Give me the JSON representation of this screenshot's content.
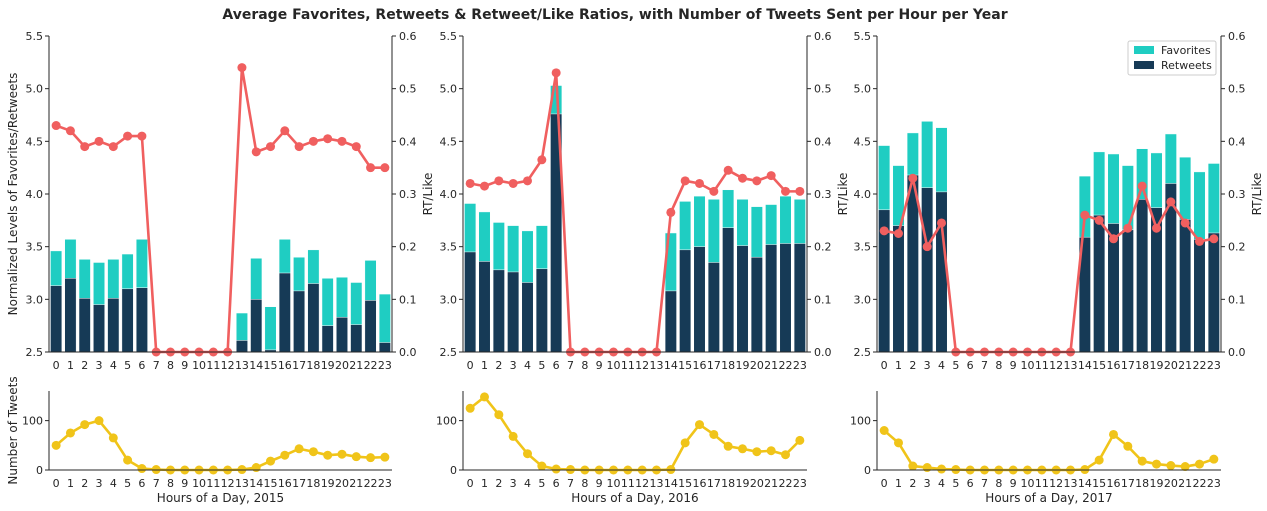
{
  "title": "Average Favorites, Retweets & Retweet/Like Ratios, with Number of Tweets Sent per Hour per Year",
  "colors": {
    "favorites": "#1fcdc2",
    "retweets": "#163a56",
    "ratio": "#f05f5f",
    "count": "#f0c419",
    "axis": "#262626"
  },
  "legend": {
    "position": "top-right",
    "entries": [
      "Favorites",
      "Retweets"
    ]
  },
  "chart_data": [
    {
      "type": "bar",
      "panel": "2015-top",
      "categories": [
        "0",
        "1",
        "2",
        "3",
        "4",
        "5",
        "6",
        "7",
        "8",
        "9",
        "10",
        "11",
        "12",
        "13",
        "14",
        "15",
        "16",
        "17",
        "18",
        "19",
        "20",
        "21",
        "22",
        "23"
      ],
      "ylabel": "Normalized Levels of Favorites/Retweets",
      "y2label": "RT/Like",
      "ylim": [
        2.5,
        5.5
      ],
      "yticks": [
        "2.5",
        "3.0",
        "3.5",
        "4.0",
        "4.5",
        "5.0",
        "5.5"
      ],
      "y2lim": [
        0.0,
        0.6
      ],
      "y2ticks": [
        "0.0",
        "0.1",
        "0.2",
        "0.3",
        "0.4",
        "0.5",
        "0.6"
      ],
      "series": [
        {
          "name": "Favorites",
          "kind": "bar",
          "values": [
            3.46,
            3.57,
            3.38,
            3.35,
            3.38,
            3.43,
            3.57,
            null,
            null,
            null,
            null,
            null,
            null,
            2.87,
            3.39,
            2.93,
            3.57,
            3.4,
            3.47,
            3.2,
            3.21,
            3.16,
            3.37,
            3.05
          ]
        },
        {
          "name": "Retweets",
          "kind": "bar",
          "values": [
            3.13,
            3.2,
            3.01,
            2.95,
            3.01,
            3.1,
            3.11,
            null,
            null,
            null,
            null,
            null,
            null,
            2.61,
            3.0,
            2.52,
            3.25,
            3.08,
            3.15,
            2.75,
            2.83,
            2.76,
            2.99,
            2.59
          ]
        },
        {
          "kind": "line",
          "axis": "right",
          "values": [
            0.43,
            0.42,
            0.39,
            0.4,
            0.39,
            0.41,
            0.41,
            0.0,
            0.0,
            0.0,
            0.0,
            0.0,
            0.0,
            0.54,
            0.38,
            0.39,
            0.42,
            0.39,
            0.4,
            0.405,
            0.4,
            0.39,
            0.35,
            0.35
          ]
        }
      ]
    },
    {
      "type": "bar",
      "panel": "2016-top",
      "categories": [
        "0",
        "1",
        "2",
        "3",
        "4",
        "5",
        "6",
        "7",
        "8",
        "9",
        "10",
        "11",
        "12",
        "13",
        "14",
        "15",
        "16",
        "17",
        "18",
        "19",
        "20",
        "21",
        "22",
        "23"
      ],
      "ylabel": "",
      "y2label": "RT/Like",
      "ylim": [
        2.5,
        5.5
      ],
      "yticks": [
        "2.5",
        "3.0",
        "3.5",
        "4.0",
        "4.5",
        "5.0",
        "5.5"
      ],
      "y2lim": [
        0.0,
        0.6
      ],
      "y2ticks": [
        "0.0",
        "0.1",
        "0.2",
        "0.3",
        "0.4",
        "0.5",
        "0.6"
      ],
      "series": [
        {
          "name": "Favorites",
          "kind": "bar",
          "values": [
            3.91,
            3.83,
            3.73,
            3.7,
            3.65,
            3.7,
            5.03,
            null,
            null,
            null,
            null,
            null,
            null,
            null,
            3.63,
            3.93,
            3.98,
            3.95,
            4.04,
            3.95,
            3.88,
            3.9,
            3.98,
            3.95
          ]
        },
        {
          "name": "Retweets",
          "kind": "bar",
          "values": [
            3.45,
            3.36,
            3.28,
            3.26,
            3.16,
            3.29,
            4.76,
            null,
            null,
            null,
            null,
            null,
            null,
            null,
            3.08,
            3.47,
            3.5,
            3.35,
            3.68,
            3.51,
            3.4,
            3.52,
            3.53,
            3.53
          ]
        },
        {
          "kind": "line",
          "axis": "right",
          "values": [
            0.32,
            0.315,
            0.325,
            0.32,
            0.325,
            0.365,
            0.53,
            0.0,
            0.0,
            0.0,
            0.0,
            0.0,
            0.0,
            0.0,
            0.265,
            0.325,
            0.32,
            0.305,
            0.345,
            0.33,
            0.325,
            0.335,
            0.305,
            0.305
          ]
        }
      ]
    },
    {
      "type": "bar",
      "panel": "2017-top",
      "categories": [
        "0",
        "1",
        "2",
        "3",
        "4",
        "5",
        "6",
        "7",
        "8",
        "9",
        "10",
        "11",
        "12",
        "13",
        "14",
        "15",
        "16",
        "17",
        "18",
        "19",
        "20",
        "21",
        "22",
        "23"
      ],
      "ylabel": "",
      "y2label": "RT/Like",
      "ylim": [
        2.5,
        5.5
      ],
      "yticks": [
        "2.5",
        "3.0",
        "3.5",
        "4.0",
        "4.5",
        "5.0",
        "5.5"
      ],
      "y2lim": [
        0.0,
        0.6
      ],
      "y2ticks": [
        "0.0",
        "0.1",
        "0.2",
        "0.3",
        "0.4",
        "0.5",
        "0.6"
      ],
      "series": [
        {
          "name": "Favorites",
          "kind": "bar",
          "values": [
            4.46,
            4.27,
            4.58,
            4.69,
            4.63,
            null,
            null,
            null,
            null,
            null,
            null,
            null,
            null,
            null,
            4.17,
            4.4,
            4.38,
            4.27,
            4.43,
            4.39,
            4.57,
            4.35,
            4.21,
            4.29
          ]
        },
        {
          "name": "Retweets",
          "kind": "bar",
          "values": [
            3.85,
            3.7,
            4.18,
            4.06,
            4.02,
            null,
            null,
            null,
            null,
            null,
            null,
            null,
            null,
            null,
            3.59,
            3.8,
            3.72,
            3.66,
            3.95,
            3.87,
            4.1,
            3.76,
            3.57,
            3.63
          ]
        },
        {
          "kind": "line",
          "axis": "right",
          "values": [
            0.23,
            0.225,
            0.33,
            0.2,
            0.245,
            0.0,
            0.0,
            0.0,
            0.0,
            0.0,
            0.0,
            0.0,
            0.0,
            0.0,
            0.26,
            0.25,
            0.215,
            0.235,
            0.315,
            0.235,
            0.285,
            0.245,
            0.21,
            0.215
          ]
        }
      ]
    },
    {
      "type": "line",
      "panel": "2015-bottom",
      "categories": [
        "0",
        "1",
        "2",
        "3",
        "4",
        "5",
        "6",
        "7",
        "8",
        "9",
        "10",
        "11",
        "12",
        "13",
        "14",
        "15",
        "16",
        "17",
        "18",
        "19",
        "20",
        "21",
        "22",
        "23"
      ],
      "xlabel": "Hours of a Day, 2015",
      "ylabel": "Number of Tweets",
      "ylim": [
        0,
        160
      ],
      "yticks": [
        "0",
        "100"
      ],
      "values": [
        50,
        75,
        92,
        100,
        65,
        20,
        3,
        1,
        0,
        0,
        0,
        0,
        0,
        1,
        5,
        18,
        30,
        43,
        37,
        30,
        32,
        27,
        25,
        26
      ]
    },
    {
      "type": "line",
      "panel": "2016-bottom",
      "categories": [
        "0",
        "1",
        "2",
        "3",
        "4",
        "5",
        "6",
        "7",
        "8",
        "9",
        "10",
        "11",
        "12",
        "13",
        "14",
        "15",
        "16",
        "17",
        "18",
        "19",
        "20",
        "21",
        "22",
        "23"
      ],
      "xlabel": "Hours of a Day, 2016",
      "ylabel": "",
      "ylim": [
        0,
        160
      ],
      "yticks": [
        "0",
        "100"
      ],
      "values": [
        125,
        148,
        112,
        68,
        33,
        8,
        2,
        1,
        0,
        0,
        0,
        0,
        0,
        0,
        1,
        55,
        92,
        72,
        48,
        43,
        37,
        39,
        31,
        60
      ]
    },
    {
      "type": "line",
      "panel": "2017-bottom",
      "categories": [
        "0",
        "1",
        "2",
        "3",
        "4",
        "5",
        "6",
        "7",
        "8",
        "9",
        "10",
        "11",
        "12",
        "13",
        "14",
        "15",
        "16",
        "17",
        "18",
        "19",
        "20",
        "21",
        "22",
        "23"
      ],
      "xlabel": "Hours of a Day, 2017",
      "ylabel": "",
      "ylim": [
        0,
        160
      ],
      "yticks": [
        "0",
        "100"
      ],
      "values": [
        80,
        55,
        8,
        5,
        2,
        1,
        0,
        0,
        0,
        0,
        0,
        0,
        0,
        0,
        1,
        20,
        72,
        48,
        18,
        12,
        9,
        7,
        12,
        22
      ]
    }
  ]
}
